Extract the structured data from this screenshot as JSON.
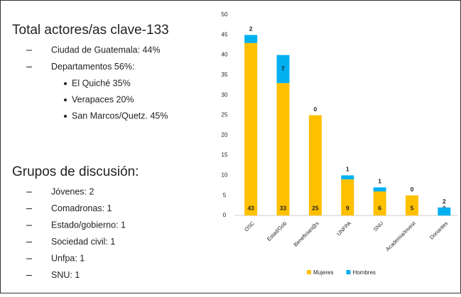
{
  "left_panel": {
    "sections": [
      {
        "heading": "Total actores/as clave-133",
        "items": [
          {
            "text": "Ciudad de Guatemala: 44%"
          },
          {
            "text": "Departamentos 56%:",
            "subitems": [
              "El Quiché 35%",
              "Verapaces 20%",
              "San Marcos/Quetz. 45%"
            ]
          }
        ]
      },
      {
        "heading": "Grupos de discusión:",
        "items": [
          {
            "text": "Jóvenes: 2"
          },
          {
            "text": "Comadronas: 1"
          },
          {
            "text": "Estado/gobierno: 1"
          },
          {
            "text": "Sociedad civil: 1"
          },
          {
            "text": "Unfpa: 1"
          },
          {
            "text": "SNU: 1"
          }
        ]
      }
    ]
  },
  "chart_data": {
    "type": "stacked_bar",
    "categories": [
      "OSC",
      "Estad/Gob",
      "Beneficiari@s",
      "UNFPA",
      "SNU",
      "Academia/Invest",
      "Donantes"
    ],
    "series": [
      {
        "name": "Mujeres",
        "color": "#ffc000",
        "label_color": "#e8352b",
        "values": [
          43,
          33,
          25,
          9,
          6,
          5,
          0
        ]
      },
      {
        "name": "Hombres",
        "color": "#00b0f0",
        "label_color": "#1f6fc0",
        "values": [
          2,
          7,
          0,
          1,
          1,
          0,
          2
        ]
      }
    ],
    "ylim": [
      0,
      50
    ],
    "yticks": [
      0,
      5,
      10,
      15,
      20,
      25,
      30,
      35,
      40,
      45,
      50
    ],
    "grid": false,
    "legend": "bottom"
  }
}
